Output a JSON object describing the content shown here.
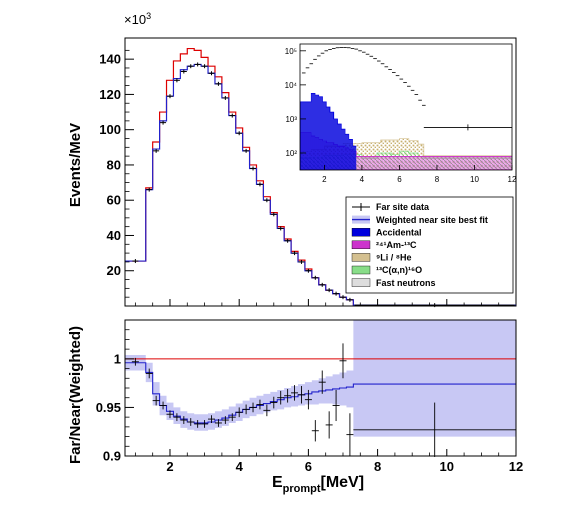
{
  "chart_data": [
    {
      "type": "line",
      "ylabel": "Events/MeV",
      "y_multiplier": "×10",
      "y_multiplier_exp": "3",
      "xlim": [
        0.7,
        12
      ],
      "ylim": [
        0,
        152
      ],
      "xticks": [
        2,
        4,
        6,
        8,
        10,
        12
      ],
      "yticks": [
        20,
        40,
        60,
        80,
        100,
        120,
        140
      ],
      "bin_edges": [
        0.7,
        1.3,
        1.5,
        1.7,
        1.9,
        2.1,
        2.3,
        2.5,
        2.7,
        2.9,
        3.1,
        3.3,
        3.5,
        3.7,
        3.9,
        4.1,
        4.3,
        4.5,
        4.7,
        4.9,
        5.1,
        5.3,
        5.5,
        5.7,
        5.9,
        6.1,
        6.3,
        6.5,
        6.7,
        6.9,
        7.1,
        7.3,
        12
      ],
      "series": [
        {
          "name": "Far site data",
          "style": "crosses",
          "x": [
            1.0,
            1.4,
            1.6,
            1.8,
            2.0,
            2.2,
            2.4,
            2.6,
            2.8,
            3.0,
            3.2,
            3.4,
            3.6,
            3.8,
            4.0,
            4.2,
            4.4,
            4.6,
            4.8,
            5.0,
            5.2,
            5.4,
            5.6,
            5.8,
            6.0,
            6.2,
            6.4,
            6.6,
            6.8,
            7.0,
            7.2,
            9.65
          ],
          "y": [
            25.5,
            66,
            88,
            104,
            119,
            128,
            133,
            136,
            137,
            136,
            132,
            126,
            118,
            108,
            98,
            88,
            78,
            69,
            60,
            52,
            44,
            37,
            30,
            25,
            20,
            16,
            12,
            9,
            7,
            5,
            3.5,
            0.5
          ]
        },
        {
          "name": "Weighted near site best fit",
          "style": "step",
          "color": "#2222cc",
          "values": [
            25.5,
            66,
            89,
            105,
            119,
            129,
            134,
            136,
            137,
            136,
            132,
            126,
            118,
            108,
            98,
            88,
            78,
            69,
            60,
            52,
            44,
            37,
            30,
            25,
            20,
            16,
            12,
            9,
            7,
            5,
            3.5,
            0.5
          ]
        },
        {
          "name": "",
          "style": "step",
          "color": "#dd0000",
          "values": [
            25.5,
            67,
            93,
            110,
            128,
            139,
            143,
            146,
            145,
            141,
            136,
            130,
            121,
            110,
            101,
            90,
            80,
            71,
            62,
            53,
            45,
            38,
            31,
            26,
            21,
            16,
            12,
            9,
            7,
            5,
            3.5,
            0.5
          ]
        }
      ],
      "legend": {
        "placement": "right",
        "entries": [
          {
            "label": "Far site data",
            "style": "cross"
          },
          {
            "label": "Weighted near site best fit",
            "style": "line",
            "color": "#2222cc"
          },
          {
            "label": "Accidental",
            "style": "fill",
            "color": "#0000dd"
          },
          {
            "label": "²⁴¹Am-¹³C",
            "style": "fill",
            "color": "#cc33cc"
          },
          {
            "label": "⁹Li / ⁸He",
            "style": "fill",
            "color": "#d4c090"
          },
          {
            "label": "¹³C(α,n)¹⁶O",
            "style": "fill",
            "color": "#88dd88"
          },
          {
            "label": "Fast neutrons",
            "style": "fill",
            "color": "#dddddd"
          }
        ]
      }
    },
    {
      "type": "line",
      "inset": true,
      "yscale": "log",
      "xlim": [
        0.7,
        12
      ],
      "ylim_exp": [
        1.5,
        5.2
      ],
      "xticks": [
        2,
        4,
        6,
        8,
        10,
        12
      ],
      "yticks": [
        "10²",
        "10³",
        "10⁴",
        "10⁵"
      ],
      "series": [
        {
          "name": "Far site data",
          "x": [
            0.9,
            1.1,
            1.3,
            1.5,
            1.7,
            1.9,
            2.1,
            2.3,
            2.5,
            2.7,
            2.9,
            3.1,
            3.3,
            3.5,
            3.7,
            3.9,
            4.1,
            4.3,
            4.5,
            4.7,
            4.9,
            5.1,
            5.3,
            5.5,
            5.7,
            5.9,
            6.1,
            6.3,
            6.5,
            6.7,
            6.9,
            7.1,
            7.3
          ],
          "y_exp": [
            4.35,
            4.5,
            4.62,
            4.75,
            4.85,
            4.93,
            5.0,
            5.04,
            5.07,
            5.09,
            5.1,
            5.1,
            5.09,
            5.07,
            5.05,
            5.0,
            4.96,
            4.9,
            4.84,
            4.77,
            4.7,
            4.62,
            4.53,
            4.45,
            4.36,
            4.27,
            4.17,
            4.07,
            3.96,
            3.84,
            3.72,
            3.55,
            3.4
          ]
        },
        {
          "name": "Far site data",
          "x": [
            9.65
          ],
          "y_exp": [
            2.75
          ]
        },
        {
          "name": "Accidental",
          "color": "#0000dd",
          "bin_edges": [
            0.7,
            1.3,
            1.5,
            1.7,
            1.9,
            2.1,
            2.3,
            2.5,
            2.7,
            2.9,
            3.1,
            3.3,
            3.5,
            3.7
          ],
          "values_exp": [
            3.5,
            3.75,
            3.7,
            3.65,
            3.5,
            3.35,
            3.2,
            3.0,
            2.85,
            2.7,
            2.55,
            2.4,
            2.2
          ]
        },
        {
          "name": "²⁴¹Am-¹³C",
          "color": "#cc33cc",
          "bin_edges": [
            0.7,
            1.3,
            1.5,
            1.7,
            1.9,
            2.1,
            2.3,
            2.5,
            2.7,
            2.9,
            3.1,
            3.3,
            3.5,
            3.7,
            12
          ],
          "values_exp": [
            2.6,
            2.5,
            2.45,
            2.4,
            2.35,
            2.3,
            2.3,
            2.25,
            2.2,
            2.2,
            2.15,
            2.1,
            2.05,
            1.9
          ]
        },
        {
          "name": "⁹Li / ⁸He",
          "color": "#d4c090",
          "bin_edges": [
            0.7,
            1.3,
            2.0,
            3.0,
            4.0,
            5.0,
            6.0,
            6.5,
            7.0,
            7.3,
            12
          ],
          "values_exp": [
            2.05,
            2.1,
            2.2,
            2.28,
            2.3,
            2.38,
            2.42,
            2.36,
            2.26,
            1.92
          ]
        },
        {
          "name": "¹³C(α,n)¹⁶O",
          "color": "#88dd88",
          "bin_edges": [
            0.7,
            1.3,
            2.0,
            3.0,
            4.0,
            4.8,
            5.6,
            6.0,
            6.5,
            7.0,
            7.3,
            12
          ],
          "values_exp": [
            1.85,
            1.88,
            1.93,
            1.95,
            1.85,
            2.0,
            1.95,
            2.05,
            2.0,
            1.9,
            1.85
          ]
        },
        {
          "name": "Fast neutrons",
          "color": "#dddddd",
          "bin_edges": [
            0.7,
            12
          ],
          "values_exp": [
            1.65
          ]
        }
      ]
    },
    {
      "type": "line",
      "ylabel": "Far/Near(Weighted)",
      "xlabel": "E",
      "xlabel_sub": "prompt",
      "xlabel_unit": "[MeV]",
      "xlim": [
        0.7,
        12
      ],
      "ylim": [
        0.9,
        1.04
      ],
      "xticks": [
        2,
        4,
        6,
        8,
        10,
        12
      ],
      "yticks": [
        0.9,
        0.95,
        1
      ],
      "reference_line": {
        "y": 1.0,
        "color": "#dd0000"
      },
      "band": {
        "color": "#c8c8f4",
        "bin_edges": [
          0.7,
          1.3,
          1.5,
          1.7,
          1.9,
          2.1,
          2.3,
          2.5,
          2.7,
          2.9,
          3.1,
          3.3,
          3.5,
          3.7,
          3.9,
          4.1,
          4.3,
          4.5,
          4.7,
          4.9,
          5.1,
          5.3,
          5.5,
          5.7,
          5.9,
          6.1,
          6.3,
          6.5,
          6.7,
          6.9,
          7.1,
          7.3,
          12
        ],
        "low": [
          0.988,
          0.976,
          0.952,
          0.942,
          0.937,
          0.933,
          0.929,
          0.927,
          0.926,
          0.926,
          0.927,
          0.929,
          0.931,
          0.934,
          0.936,
          0.939,
          0.941,
          0.943,
          0.945,
          0.947,
          0.948,
          0.95,
          0.951,
          0.952,
          0.953,
          0.953,
          0.954,
          0.954,
          0.953,
          0.952,
          0.95,
          0.92
        ],
        "high": [
          1.004,
          0.996,
          0.976,
          0.962,
          0.955,
          0.95,
          0.946,
          0.944,
          0.943,
          0.943,
          0.944,
          0.946,
          0.948,
          0.951,
          0.954,
          0.957,
          0.96,
          0.962,
          0.964,
          0.966,
          0.968,
          0.97,
          0.972,
          0.974,
          0.976,
          0.978,
          0.98,
          0.982,
          0.984,
          0.986,
          0.988,
          1.04
        ]
      },
      "series": [
        {
          "name": "Weighted near site best fit",
          "style": "step",
          "color": "#2222cc",
          "bin_edges": [
            0.7,
            1.3,
            1.5,
            1.7,
            1.9,
            2.1,
            2.3,
            2.5,
            2.7,
            2.9,
            3.1,
            3.3,
            3.5,
            3.7,
            3.9,
            4.1,
            4.3,
            4.5,
            4.7,
            4.9,
            5.1,
            5.3,
            5.5,
            5.7,
            5.9,
            6.1,
            6.3,
            6.5,
            6.7,
            6.9,
            7.1,
            7.3,
            12
          ],
          "values": [
            0.996,
            0.986,
            0.964,
            0.952,
            0.946,
            0.941,
            0.938,
            0.935,
            0.934,
            0.934,
            0.935,
            0.937,
            0.939,
            0.942,
            0.945,
            0.948,
            0.95,
            0.952,
            0.954,
            0.956,
            0.958,
            0.96,
            0.961,
            0.963,
            0.964,
            0.966,
            0.967,
            0.968,
            0.969,
            0.97,
            0.971,
            0.974
          ]
        },
        {
          "name": "Far site data",
          "style": "crosses",
          "x": [
            1.0,
            1.4,
            1.6,
            1.8,
            2.0,
            2.2,
            2.4,
            2.6,
            2.8,
            3.0,
            3.2,
            3.4,
            3.6,
            3.8,
            4.0,
            4.2,
            4.4,
            4.6,
            4.8,
            5.0,
            5.2,
            5.4,
            5.6,
            5.8,
            6.0,
            6.2,
            6.4,
            6.6,
            6.8,
            7.0,
            7.2,
            9.65
          ],
          "y": [
            0.997,
            0.985,
            0.957,
            0.952,
            0.943,
            0.94,
            0.937,
            0.935,
            0.933,
            0.933,
            0.938,
            0.934,
            0.937,
            0.94,
            0.945,
            0.948,
            0.95,
            0.953,
            0.947,
            0.955,
            0.96,
            0.962,
            0.965,
            0.963,
            0.958,
            0.926,
            0.976,
            0.932,
            0.952,
            0.998,
            0.922,
            0.927
          ],
          "err": [
            0.004,
            0.005,
            0.005,
            0.004,
            0.004,
            0.004,
            0.004,
            0.004,
            0.004,
            0.004,
            0.004,
            0.004,
            0.004,
            0.004,
            0.005,
            0.005,
            0.005,
            0.005,
            0.006,
            0.006,
            0.007,
            0.007,
            0.008,
            0.009,
            0.01,
            0.011,
            0.012,
            0.014,
            0.016,
            0.018,
            0.022,
            0.028
          ]
        }
      ]
    }
  ]
}
